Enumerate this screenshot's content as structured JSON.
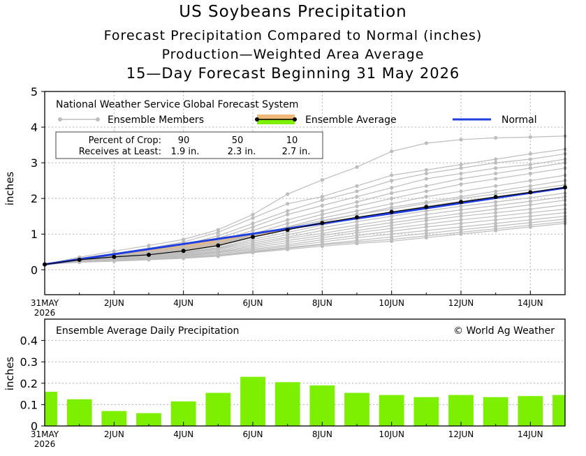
{
  "titles": {
    "title": "US Soybeans Precipitation",
    "subtitle1": "Forecast Precipitation Compared to Normal (inches)",
    "subtitle2": "Production—Weighted Area Average",
    "subtitle3": "15—Day Forecast Beginning 31 May 2026"
  },
  "top_panel": {
    "model_label": "National Weather Service Global Forecast System",
    "legend": {
      "members": "Ensemble Members",
      "average": "Ensemble Average",
      "normal": "Normal"
    },
    "crop_box": {
      "row1": [
        "Percent of Crop:",
        "90",
        "50",
        "10"
      ],
      "row2": [
        "Receives at Least:",
        "1.9 in.",
        "2.3 in.",
        "2.7 in."
      ]
    }
  },
  "bottom_panel": {
    "label": "Ensemble Average Daily Precipitation",
    "credit": "© World Ag Weather"
  },
  "colors": {
    "member": "#bdbdbd",
    "average": "#000000",
    "normal": "#1f3fe0",
    "above_normal_fill": "#7cf000",
    "below_normal_fill": "#f0b878",
    "bar": "#7cf000",
    "grid": "#b0b0b0"
  },
  "chart_data": [
    {
      "type": "line",
      "ylabel": "inches",
      "ylim": [
        -0.7,
        5
      ],
      "yticks": [
        0,
        1,
        2,
        3,
        4,
        5
      ],
      "x_day_range": [
        0,
        15
      ],
      "xticks": [
        {
          "day": 0,
          "label": "31MAY",
          "sub": "2026"
        },
        {
          "day": 2,
          "label": "2JUN"
        },
        {
          "day": 4,
          "label": "4JUN"
        },
        {
          "day": 6,
          "label": "6JUN"
        },
        {
          "day": 8,
          "label": "8JUN"
        },
        {
          "day": 10,
          "label": "10JUN"
        },
        {
          "day": 12,
          "label": "12JUN"
        },
        {
          "day": 14,
          "label": "14JUN"
        }
      ],
      "grid": true,
      "legend_position": "top-left",
      "series": [
        {
          "name": "Normal",
          "x": [
            0,
            15
          ],
          "values": [
            0.15,
            2.3
          ]
        },
        {
          "name": "Ensemble Average",
          "x": [
            0,
            1,
            2,
            3,
            4,
            5,
            6,
            7,
            8,
            9,
            10,
            11,
            12,
            13,
            14,
            15
          ],
          "values": [
            0.15,
            0.28,
            0.36,
            0.42,
            0.53,
            0.68,
            0.92,
            1.12,
            1.31,
            1.47,
            1.62,
            1.76,
            1.9,
            2.04,
            2.17,
            2.31
          ]
        }
      ],
      "ensemble_members": [
        [
          0.15,
          0.35,
          0.52,
          0.68,
          0.85,
          1.12,
          1.55,
          2.12,
          2.52,
          2.88,
          3.32,
          3.55,
          3.65,
          3.7,
          3.72,
          3.75
        ],
        [
          0.15,
          0.32,
          0.45,
          0.6,
          0.78,
          1.05,
          1.45,
          1.85,
          2.05,
          2.35,
          2.65,
          2.8,
          2.95,
          3.1,
          3.25,
          3.38
        ],
        [
          0.15,
          0.3,
          0.42,
          0.55,
          0.7,
          0.95,
          1.3,
          1.65,
          1.95,
          2.2,
          2.5,
          2.7,
          2.85,
          3.0,
          3.1,
          3.25
        ],
        [
          0.15,
          0.3,
          0.4,
          0.5,
          0.65,
          0.88,
          1.2,
          1.55,
          1.8,
          2.05,
          2.3,
          2.55,
          2.7,
          2.85,
          2.95,
          3.1
        ],
        [
          0.15,
          0.28,
          0.38,
          0.48,
          0.6,
          0.8,
          1.1,
          1.4,
          1.65,
          1.9,
          2.15,
          2.35,
          2.55,
          2.7,
          2.85,
          3.0
        ],
        [
          0.15,
          0.28,
          0.37,
          0.45,
          0.58,
          0.75,
          1.0,
          1.3,
          1.55,
          1.78,
          2.0,
          2.2,
          2.4,
          2.55,
          2.7,
          2.85
        ],
        [
          0.15,
          0.27,
          0.36,
          0.44,
          0.55,
          0.7,
          0.95,
          1.2,
          1.45,
          1.65,
          1.85,
          2.05,
          2.2,
          2.35,
          2.5,
          2.65
        ],
        [
          0.15,
          0.27,
          0.35,
          0.42,
          0.52,
          0.66,
          0.9,
          1.12,
          1.35,
          1.55,
          1.75,
          1.9,
          2.05,
          2.2,
          2.35,
          2.5
        ],
        [
          0.15,
          0.26,
          0.34,
          0.4,
          0.5,
          0.62,
          0.85,
          1.05,
          1.25,
          1.45,
          1.62,
          1.78,
          1.92,
          2.05,
          2.18,
          2.3
        ],
        [
          0.15,
          0.26,
          0.33,
          0.38,
          0.48,
          0.6,
          0.8,
          0.98,
          1.18,
          1.35,
          1.5,
          1.65,
          1.78,
          1.9,
          2.02,
          2.15
        ],
        [
          0.15,
          0.25,
          0.32,
          0.37,
          0.46,
          0.58,
          0.75,
          0.92,
          1.1,
          1.25,
          1.4,
          1.55,
          1.68,
          1.8,
          1.92,
          2.05
        ],
        [
          0.15,
          0.25,
          0.31,
          0.36,
          0.44,
          0.55,
          0.7,
          0.88,
          1.02,
          1.18,
          1.32,
          1.45,
          1.58,
          1.7,
          1.82,
          1.95
        ],
        [
          0.15,
          0.24,
          0.3,
          0.35,
          0.42,
          0.52,
          0.66,
          0.82,
          0.96,
          1.1,
          1.24,
          1.38,
          1.5,
          1.6,
          1.7,
          1.82
        ],
        [
          0.15,
          0.24,
          0.29,
          0.34,
          0.4,
          0.5,
          0.62,
          0.76,
          0.9,
          1.04,
          1.16,
          1.28,
          1.4,
          1.5,
          1.6,
          1.7
        ],
        [
          0.15,
          0.23,
          0.28,
          0.33,
          0.38,
          0.48,
          0.58,
          0.7,
          0.84,
          0.96,
          1.08,
          1.2,
          1.3,
          1.4,
          1.5,
          1.6
        ],
        [
          0.15,
          0.23,
          0.27,
          0.31,
          0.36,
          0.45,
          0.55,
          0.66,
          0.78,
          0.9,
          1.0,
          1.1,
          1.2,
          1.3,
          1.4,
          1.5
        ],
        [
          0.15,
          0.22,
          0.26,
          0.3,
          0.34,
          0.42,
          0.52,
          0.62,
          0.72,
          0.82,
          0.92,
          1.02,
          1.12,
          1.22,
          1.32,
          1.42
        ],
        [
          0.15,
          0.22,
          0.25,
          0.29,
          0.33,
          0.4,
          0.5,
          0.6,
          0.7,
          0.78,
          0.85,
          0.95,
          1.05,
          1.15,
          1.25,
          1.35
        ],
        [
          0.15,
          0.21,
          0.24,
          0.28,
          0.32,
          0.38,
          0.48,
          0.57,
          0.66,
          0.74,
          0.8,
          0.9,
          1.0,
          1.1,
          1.2,
          1.3
        ],
        [
          0.15,
          0.26,
          0.36,
          0.45,
          0.58,
          0.74,
          0.96,
          1.18,
          1.38,
          1.55,
          1.7,
          1.86,
          2.0,
          2.12,
          2.25,
          2.38
        ]
      ]
    },
    {
      "type": "bar",
      "ylabel": "inches",
      "ylim": [
        0,
        0.5
      ],
      "yticks": [
        0,
        0.1,
        0.2,
        0.3,
        0.4
      ],
      "grid": true,
      "x": [
        0,
        1,
        2,
        3,
        4,
        5,
        6,
        7,
        8,
        9,
        10,
        11,
        12,
        13,
        14,
        15
      ],
      "values": [
        0.16,
        0.125,
        0.07,
        0.06,
        0.115,
        0.155,
        0.23,
        0.205,
        0.19,
        0.155,
        0.145,
        0.135,
        0.145,
        0.135,
        0.14,
        0.145
      ],
      "xticks": [
        {
          "day": 0,
          "label": "31MAY",
          "sub": "2026"
        },
        {
          "day": 2,
          "label": "2JUN"
        },
        {
          "day": 4,
          "label": "4JUN"
        },
        {
          "day": 6,
          "label": "6JUN"
        },
        {
          "day": 8,
          "label": "8JUN"
        },
        {
          "day": 10,
          "label": "10JUN"
        },
        {
          "day": 12,
          "label": "12JUN"
        },
        {
          "day": 14,
          "label": "14JUN"
        }
      ]
    }
  ]
}
